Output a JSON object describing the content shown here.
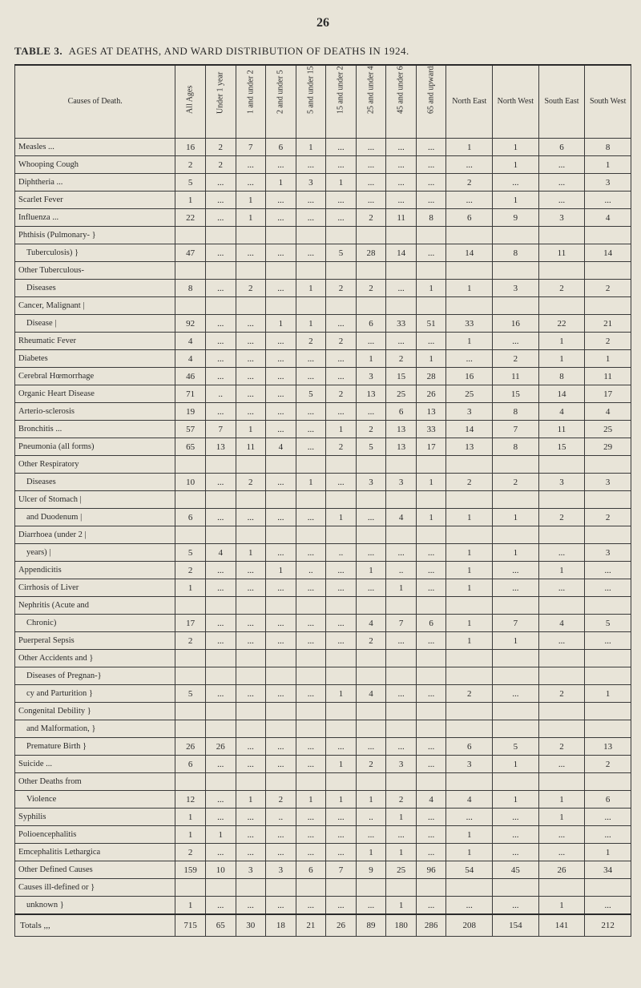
{
  "page_number": "26",
  "table_title_prefix": "TABLE 3.",
  "table_title": "AGES AT DEATHS, AND WARD DISTRIBUTION OF DEATHS IN 1924.",
  "columns": {
    "cause": "Causes of Death.",
    "all_ages": "All Ages",
    "u1": "Under 1 year",
    "a1_2": "1 and under 2",
    "a2_5": "2 and under 5",
    "a5_15": "5 and under 15",
    "a15_25": "15 and under 25",
    "a25_45": "25 and under 45",
    "a45_65": "45 and under 65",
    "a65_up": "65 and upwards",
    "ne": "North East",
    "nw": "North West",
    "se": "South East",
    "sw": "South West"
  },
  "rows": [
    {
      "cause": "Measles ...",
      "all": "16",
      "u1": "2",
      "a1": "7",
      "a2": "6",
      "a5": "1",
      "a15": "...",
      "a25": "...",
      "a45": "...",
      "a65": "...",
      "ne": "1",
      "nw": "1",
      "se": "6",
      "sw": "8"
    },
    {
      "cause": "Whooping Cough",
      "all": "2",
      "u1": "2",
      "a1": "...",
      "a2": "...",
      "a5": "...",
      "a15": "...",
      "a25": "...",
      "a45": "...",
      "a65": "...",
      "ne": "...",
      "nw": "1",
      "se": "...",
      "sw": "1"
    },
    {
      "cause": "Diphtheria ...",
      "all": "5",
      "u1": "...",
      "a1": "...",
      "a2": "1",
      "a5": "3",
      "a15": "1",
      "a25": "...",
      "a45": "...",
      "a65": "...",
      "ne": "2",
      "nw": "...",
      "se": "...",
      "sw": "3"
    },
    {
      "cause": "Scarlet Fever",
      "all": "1",
      "u1": "...",
      "a1": "1",
      "a2": "...",
      "a5": "...",
      "a15": "...",
      "a25": "...",
      "a45": "...",
      "a65": "...",
      "ne": "...",
      "nw": "1",
      "se": "...",
      "sw": "..."
    },
    {
      "cause": "Influenza ...",
      "all": "22",
      "u1": "...",
      "a1": "1",
      "a2": "...",
      "a5": "...",
      "a15": "...",
      "a25": "2",
      "a45": "11",
      "a65": "8",
      "ne": "6",
      "nw": "9",
      "se": "3",
      "sw": "4"
    },
    {
      "cause": "Phthisis (Pulmonary- }",
      "sub": false,
      "all": "",
      "u1": "",
      "a1": "",
      "a2": "",
      "a5": "",
      "a15": "",
      "a25": "",
      "a45": "",
      "a65": "",
      "ne": "",
      "nw": "",
      "se": "",
      "sw": ""
    },
    {
      "cause": "Tuberculosis)        }",
      "sub": true,
      "all": "47",
      "u1": "...",
      "a1": "...",
      "a2": "...",
      "a5": "...",
      "a15": "5",
      "a25": "28",
      "a45": "14",
      "a65": "...",
      "ne": "14",
      "nw": "8",
      "se": "11",
      "sw": "14"
    },
    {
      "cause": "Other Tuberculous-",
      "all": "",
      "u1": "",
      "a1": "",
      "a2": "",
      "a5": "",
      "a15": "",
      "a25": "",
      "a45": "",
      "a65": "",
      "ne": "",
      "nw": "",
      "se": "",
      "sw": ""
    },
    {
      "cause": "Diseases",
      "sub": true,
      "all": "8",
      "u1": "...",
      "a1": "2",
      "a2": "...",
      "a5": "1",
      "a15": "2",
      "a25": "2",
      "a45": "...",
      "a65": "1",
      "ne": "1",
      "nw": "3",
      "se": "2",
      "sw": "2"
    },
    {
      "cause": "Cancer, Malignant   |",
      "all": "",
      "u1": "",
      "a1": "",
      "a2": "",
      "a5": "",
      "a15": "",
      "a25": "",
      "a45": "",
      "a65": "",
      "ne": "",
      "nw": "",
      "se": "",
      "sw": ""
    },
    {
      "cause": "Disease             |",
      "sub": true,
      "all": "92",
      "u1": "...",
      "a1": "...",
      "a2": "1",
      "a5": "1",
      "a15": "...",
      "a25": "6",
      "a45": "33",
      "a65": "51",
      "ne": "33",
      "nw": "16",
      "se": "22",
      "sw": "21"
    },
    {
      "cause": "Rheumatic Fever",
      "all": "4",
      "u1": "...",
      "a1": "...",
      "a2": "...",
      "a5": "2",
      "a15": "2",
      "a25": "...",
      "a45": "...",
      "a65": "...",
      "ne": "1",
      "nw": "...",
      "se": "1",
      "sw": "2"
    },
    {
      "cause": "Diabetes",
      "all": "4",
      "u1": "...",
      "a1": "...",
      "a2": "...",
      "a5": "...",
      "a15": "...",
      "a25": "1",
      "a45": "2",
      "a65": "1",
      "ne": "...",
      "nw": "2",
      "se": "1",
      "sw": "1"
    },
    {
      "cause": "Cerebral Hœmorrhage",
      "all": "46",
      "u1": "...",
      "a1": "...",
      "a2": "...",
      "a5": "...",
      "a15": "...",
      "a25": "3",
      "a45": "15",
      "a65": "28",
      "ne": "16",
      "nw": "11",
      "se": "8",
      "sw": "11"
    },
    {
      "cause": "Organic Heart Disease",
      "all": "71",
      "u1": "..",
      "a1": "...",
      "a2": "...",
      "a5": "5",
      "a15": "2",
      "a25": "13",
      "a45": "25",
      "a65": "26",
      "ne": "25",
      "nw": "15",
      "se": "14",
      "sw": "17"
    },
    {
      "cause": "Arterio-sclerosis",
      "all": "19",
      "u1": "...",
      "a1": "...",
      "a2": "...",
      "a5": "...",
      "a15": "...",
      "a25": "...",
      "a45": "6",
      "a65": "13",
      "ne": "3",
      "nw": "8",
      "se": "4",
      "sw": "4"
    },
    {
      "cause": "Bronchitis ...",
      "all": "57",
      "u1": "7",
      "a1": "1",
      "a2": "...",
      "a5": "...",
      "a15": "1",
      "a25": "2",
      "a45": "13",
      "a65": "33",
      "ne": "14",
      "nw": "7",
      "se": "11",
      "sw": "25"
    },
    {
      "cause": "Pneumonia (all forms)",
      "all": "65",
      "u1": "13",
      "a1": "11",
      "a2": "4",
      "a5": "...",
      "a15": "2",
      "a25": "5",
      "a45": "13",
      "a65": "17",
      "ne": "13",
      "nw": "8",
      "se": "15",
      "sw": "29"
    },
    {
      "cause": "Other Respiratory",
      "all": "",
      "u1": "",
      "a1": "",
      "a2": "",
      "a5": "",
      "a15": "",
      "a25": "",
      "a45": "",
      "a65": "",
      "ne": "",
      "nw": "",
      "se": "",
      "sw": ""
    },
    {
      "cause": "Diseases",
      "sub": true,
      "all": "10",
      "u1": "...",
      "a1": "2",
      "a2": "...",
      "a5": "1",
      "a15": "...",
      "a25": "3",
      "a45": "3",
      "a65": "1",
      "ne": "2",
      "nw": "2",
      "se": "3",
      "sw": "3"
    },
    {
      "cause": "Ulcer of Stomach    |",
      "all": "",
      "u1": "",
      "a1": "",
      "a2": "",
      "a5": "",
      "a15": "",
      "a25": "",
      "a45": "",
      "a65": "",
      "ne": "",
      "nw": "",
      "se": "",
      "sw": ""
    },
    {
      "cause": "and Duodenum     |",
      "sub": true,
      "all": "6",
      "u1": "...",
      "a1": "...",
      "a2": "...",
      "a5": "...",
      "a15": "1",
      "a25": "...",
      "a45": "4",
      "a65": "1",
      "ne": "1",
      "nw": "1",
      "se": "2",
      "sw": "2"
    },
    {
      "cause": "Diarrhoea (under 2  |",
      "all": "",
      "u1": "",
      "a1": "",
      "a2": "",
      "a5": "",
      "a15": "",
      "a25": "",
      "a45": "",
      "a65": "",
      "ne": "",
      "nw": "",
      "se": "",
      "sw": ""
    },
    {
      "cause": "years)           |",
      "sub": true,
      "all": "5",
      "u1": "4",
      "a1": "1",
      "a2": "...",
      "a5": "...",
      "a15": "..",
      "a25": "...",
      "a45": "...",
      "a65": "...",
      "ne": "1",
      "nw": "1",
      "se": "...",
      "sw": "3"
    },
    {
      "cause": "Appendicitis",
      "all": "2",
      "u1": "...",
      "a1": "...",
      "a2": "1",
      "a5": "..",
      "a15": "...",
      "a25": "1",
      "a45": "..",
      "a65": "...",
      "ne": "1",
      "nw": "...",
      "se": "1",
      "sw": "..."
    },
    {
      "cause": "Cirrhosis of Liver",
      "all": "1",
      "u1": "...",
      "a1": "...",
      "a2": "...",
      "a5": "...",
      "a15": "...",
      "a25": "...",
      "a45": "1",
      "a65": "...",
      "ne": "1",
      "nw": "...",
      "se": "...",
      "sw": "..."
    },
    {
      "cause": "Nephritis (Acute and",
      "all": "",
      "u1": "",
      "a1": "",
      "a2": "",
      "a5": "",
      "a15": "",
      "a25": "",
      "a45": "",
      "a65": "",
      "ne": "",
      "nw": "",
      "se": "",
      "sw": ""
    },
    {
      "cause": "Chronic)",
      "sub": true,
      "all": "17",
      "u1": "...",
      "a1": "...",
      "a2": "...",
      "a5": "...",
      "a15": "...",
      "a25": "4",
      "a45": "7",
      "a65": "6",
      "ne": "1",
      "nw": "7",
      "se": "4",
      "sw": "5"
    },
    {
      "cause": "Puerperal Sepsis",
      "all": "2",
      "u1": "...",
      "a1": "...",
      "a2": "...",
      "a5": "...",
      "a15": "...",
      "a25": "2",
      "a45": "...",
      "a65": "...",
      "ne": "1",
      "nw": "1",
      "se": "...",
      "sw": "..."
    },
    {
      "cause": "Other Accidents and }",
      "all": "",
      "u1": "",
      "a1": "",
      "a2": "",
      "a5": "",
      "a15": "",
      "a25": "",
      "a45": "",
      "a65": "",
      "ne": "",
      "nw": "",
      "se": "",
      "sw": ""
    },
    {
      "cause": "Diseases of Pregnan-}",
      "sub": true,
      "all": "",
      "u1": "",
      "a1": "",
      "a2": "",
      "a5": "",
      "a15": "",
      "a25": "",
      "a45": "",
      "a65": "",
      "ne": "",
      "nw": "",
      "se": "",
      "sw": ""
    },
    {
      "cause": "cy and Parturition }",
      "sub": true,
      "all": "5",
      "u1": "...",
      "a1": "...",
      "a2": "...",
      "a5": "...",
      "a15": "1",
      "a25": "4",
      "a45": "...",
      "a65": "...",
      "ne": "2",
      "nw": "...",
      "se": "2",
      "sw": "1"
    },
    {
      "cause": "Congenital Debility  }",
      "all": "",
      "u1": "",
      "a1": "",
      "a2": "",
      "a5": "",
      "a15": "",
      "a25": "",
      "a45": "",
      "a65": "",
      "ne": "",
      "nw": "",
      "se": "",
      "sw": ""
    },
    {
      "cause": "and Malformation, }",
      "sub": true,
      "all": "",
      "u1": "",
      "a1": "",
      "a2": "",
      "a5": "",
      "a15": "",
      "a25": "",
      "a45": "",
      "a65": "",
      "ne": "",
      "nw": "",
      "se": "",
      "sw": ""
    },
    {
      "cause": "Premature Birth  }",
      "sub": true,
      "all": "26",
      "u1": "26",
      "a1": "...",
      "a2": "...",
      "a5": "...",
      "a15": "...",
      "a25": "...",
      "a45": "...",
      "a65": "...",
      "ne": "6",
      "nw": "5",
      "se": "2",
      "sw": "13"
    },
    {
      "cause": "Suicide ...",
      "all": "6",
      "u1": "...",
      "a1": "...",
      "a2": "...",
      "a5": "...",
      "a15": "1",
      "a25": "2",
      "a45": "3",
      "a65": "...",
      "ne": "3",
      "nw": "1",
      "se": "...",
      "sw": "2"
    },
    {
      "cause": "Other Deaths from",
      "all": "",
      "u1": "",
      "a1": "",
      "a2": "",
      "a5": "",
      "a15": "",
      "a25": "",
      "a45": "",
      "a65": "",
      "ne": "",
      "nw": "",
      "se": "",
      "sw": ""
    },
    {
      "cause": "Violence",
      "sub": true,
      "all": "12",
      "u1": "...",
      "a1": "1",
      "a2": "2",
      "a5": "1",
      "a15": "1",
      "a25": "1",
      "a45": "2",
      "a65": "4",
      "ne": "4",
      "nw": "1",
      "se": "1",
      "sw": "6"
    },
    {
      "cause": "Syphilis",
      "all": "1",
      "u1": "...",
      "a1": "...",
      "a2": "..",
      "a5": "...",
      "a15": "...",
      "a25": "..",
      "a45": "1",
      "a65": "...",
      "ne": "...",
      "nw": "...",
      "se": "1",
      "sw": "..."
    },
    {
      "cause": "Polioencephalitis",
      "all": "1",
      "u1": "1",
      "a1": "...",
      "a2": "...",
      "a5": "...",
      "a15": "...",
      "a25": "...",
      "a45": "...",
      "a65": "...",
      "ne": "1",
      "nw": "...",
      "se": "...",
      "sw": "..."
    },
    {
      "cause": "Emcephalitis Lethargica",
      "all": "2",
      "u1": "...",
      "a1": "...",
      "a2": "...",
      "a5": "...",
      "a15": "...",
      "a25": "1",
      "a45": "1",
      "a65": "...",
      "ne": "1",
      "nw": "...",
      "se": "...",
      "sw": "1"
    },
    {
      "cause": "Other Defined Causes",
      "all": "159",
      "u1": "10",
      "a1": "3",
      "a2": "3",
      "a5": "6",
      "a15": "7",
      "a25": "9",
      "a45": "25",
      "a65": "96",
      "ne": "54",
      "nw": "45",
      "se": "26",
      "sw": "34"
    },
    {
      "cause": "Causes ill-defined or }",
      "all": "",
      "u1": "",
      "a1": "",
      "a2": "",
      "a5": "",
      "a15": "",
      "a25": "",
      "a45": "",
      "a65": "",
      "ne": "",
      "nw": "",
      "se": "",
      "sw": ""
    },
    {
      "cause": "unknown           }",
      "sub": true,
      "all": "1",
      "u1": "...",
      "a1": "...",
      "a2": "...",
      "a5": "...",
      "a15": "...",
      "a25": "...",
      "a45": "1",
      "a65": "...",
      "ne": "...",
      "nw": "...",
      "se": "1",
      "sw": "..."
    }
  ],
  "totals": {
    "cause": "Totals   ,,,",
    "all": "715",
    "u1": "65",
    "a1": "30",
    "a2": "18",
    "a5": "21",
    "a15": "26",
    "a25": "89",
    "a45": "180",
    "a65": "286",
    "ne": "208",
    "nw": "154",
    "se": "141",
    "sw": "212"
  }
}
